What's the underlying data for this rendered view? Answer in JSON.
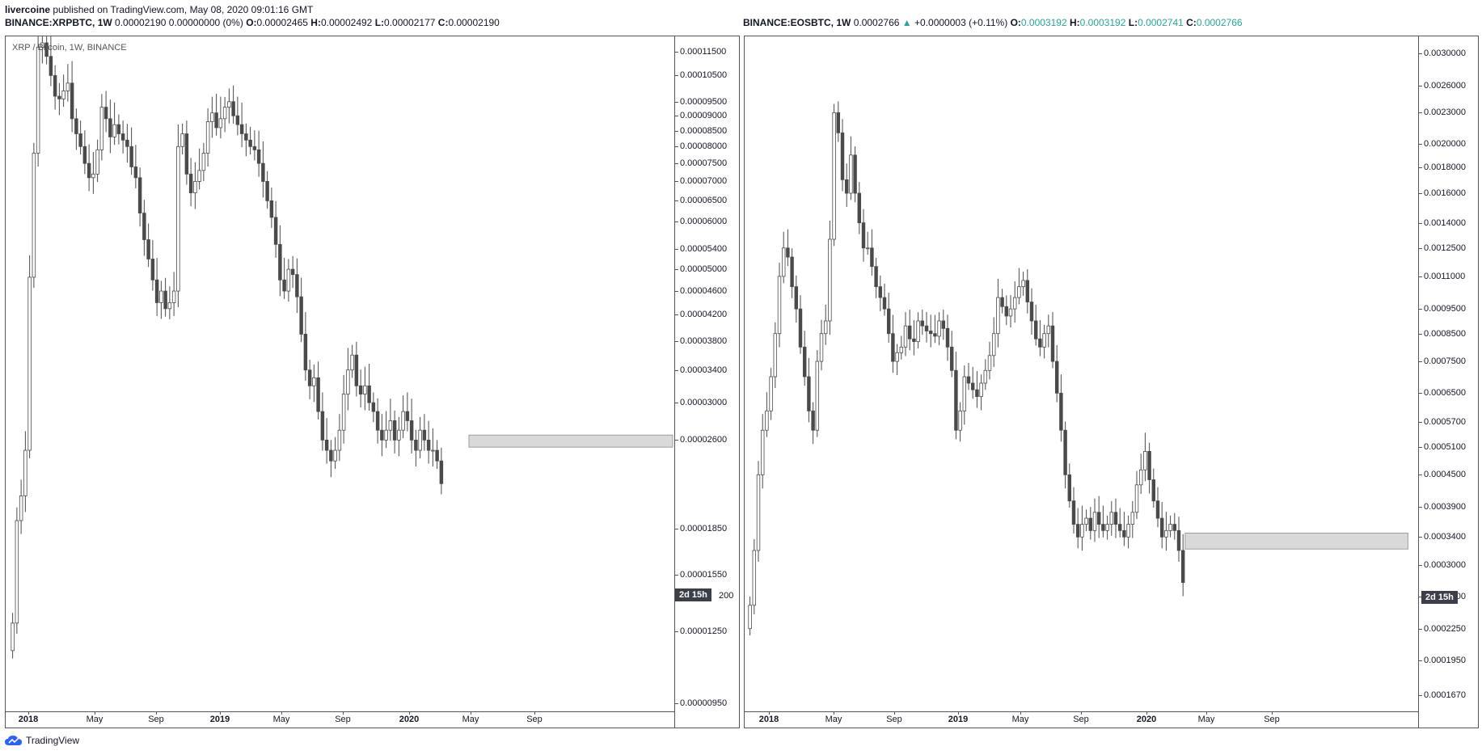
{
  "header": {
    "publisher": "livercoine",
    "published_text": "published on TradingView.com, May 08, 2020 09:01:16 GMT"
  },
  "footer": {
    "brand": "TradingView"
  },
  "colors": {
    "candle_body_down": "#4a4a4a",
    "candle_body_up": "#ffffff",
    "candle_border": "#4a4a4a",
    "zone_fill": "#d9d9d9",
    "zone_border": "#9e9e9e",
    "badge_bg": "#3c3f4a",
    "teal": "#26a69a"
  },
  "panels": [
    {
      "symbol": "BINANCE:XRPBTC",
      "interval": "1W",
      "legend_change": "0.00002190 0.00000000 (0%)",
      "change_up": false,
      "o": "0.00002465",
      "h": "0.00002492",
      "l": "0.00002177",
      "c": "0.00002190",
      "ohlc_teal": false,
      "watermark": "XRP / Bitcoin, 1W, BINANCE",
      "countdown": "2d 15h",
      "countdown_price_label": "200",
      "y_ticks": [
        "0.00011500",
        "0.00010500",
        "0.00009500",
        "0.00009000",
        "0.00008500",
        "0.00008000",
        "0.00007500",
        "0.00007000",
        "0.00006500",
        "0.00006000",
        "0.00005400",
        "0.00005000",
        "0.00004600",
        "0.00004200",
        "0.00003800",
        "0.00003400",
        "0.00003000",
        "0.00002600",
        "0.00001850",
        "0.00001550",
        "0.00001250",
        "0.00000950"
      ],
      "x_ticks": [
        "2018",
        "May",
        "Sep",
        "2019",
        "May",
        "Sep",
        "2020",
        "May",
        "Sep"
      ],
      "chart_data": {
        "type": "candlestick",
        "scale": "log",
        "x_unit": "week",
        "ylim": [
          9.2e-06,
          0.000119
        ],
        "series_close": [
          1.29e-05,
          1.91e-05,
          2.1e-05,
          2.5e-05,
          4.85e-05,
          7.8e-05,
          0.000117,
          0.000119,
          0.000113,
          0.000105,
          9.7e-05,
          9.6e-05,
          9.9e-05,
          0.000102,
          8.9e-05,
          8.4e-05,
          8e-05,
          7.5e-05,
          7.1e-05,
          7.2e-05,
          7.9e-05,
          9.3e-05,
          8.9e-05,
          8.3e-05,
          8.7e-05,
          8.4e-05,
          8.2e-05,
          8e-05,
          7.4e-05,
          7.1e-05,
          6.2e-05,
          5.6e-05,
          5.2e-05,
          4.8e-05,
          4.4e-05,
          4.6e-05,
          4.3e-05,
          4.4e-05,
          4.6e-05,
          8e-05,
          8.4e-05,
          7.2e-05,
          6.7e-05,
          7e-05,
          7.3e-05,
          7.8e-05,
          8.8e-05,
          9.1e-05,
          8.6e-05,
          8.9e-05,
          9.3e-05,
          9.5e-05,
          9e-05,
          8.7e-05,
          8.4e-05,
          8.2e-05,
          8e-05,
          7.9e-05,
          7.5e-05,
          7e-05,
          6.5e-05,
          6.1e-05,
          5.5e-05,
          4.8e-05,
          4.6e-05,
          5e-05,
          4.9e-05,
          4.5e-05,
          3.9e-05,
          3.4e-05,
          3.2e-05,
          3.3e-05,
          2.9e-05,
          2.6e-05,
          2.5e-05,
          2.4e-05,
          2.5e-05,
          2.7e-05,
          3.1e-05,
          3.4e-05,
          3.6e-05,
          3.2e-05,
          3.1e-05,
          3.2e-05,
          3e-05,
          2.9e-05,
          2.7e-05,
          2.6e-05,
          2.7e-05,
          2.8e-05,
          2.6e-05,
          2.7e-05,
          2.9e-05,
          2.8e-05,
          2.6e-05,
          2.5e-05,
          2.7e-05,
          2.6e-05,
          2.5e-05,
          2.5e-05,
          2.4e-05,
          2.2e-05
        ],
        "support_zone": {
          "y_low": 2.53e-05,
          "y_high": 2.65e-05,
          "x_start_week": 108,
          "x_end_week": 156
        }
      }
    },
    {
      "symbol": "BINANCE:EOSBTC",
      "interval": "1W",
      "legend_change": "0.0002766",
      "change_arrow": "▲",
      "change_delta": "+0.0000003 (+0.11%)",
      "change_up": true,
      "o": "0.0003192",
      "h": "0.0003192",
      "l": "0.0002741",
      "c": "0.0002766",
      "ohlc_teal": true,
      "watermark": "",
      "countdown": "2d 15h",
      "countdown_price_label": "",
      "y_ticks": [
        "0.0030000",
        "0.0026000",
        "0.0023000",
        "0.0020000",
        "0.0018000",
        "0.0016000",
        "0.0014000",
        "0.0012500",
        "0.0011000",
        "0.0009500",
        "0.0008500",
        "0.0007500",
        "0.0006500",
        "0.0005700",
        "0.0005100",
        "0.0004500",
        "0.0003900",
        "0.0003400",
        "0.0003000",
        "0.0002600",
        "0.0002250",
        "0.0001950",
        "0.0001670"
      ],
      "x_ticks": [
        "2018",
        "May",
        "Sep",
        "2019",
        "May",
        "Sep",
        "2020",
        "May",
        "Sep"
      ],
      "chart_data": {
        "type": "candlestick",
        "scale": "log",
        "x_unit": "week",
        "ylim": [
          0.000155,
          0.00315
        ],
        "series_close": [
          0.00025,
          0.00032,
          0.00045,
          0.00055,
          0.0006,
          0.0007,
          0.00085,
          0.0011,
          0.00125,
          0.0012,
          0.00105,
          0.00095,
          0.0008,
          0.0007,
          0.0006,
          0.00055,
          0.00075,
          0.00085,
          0.0009,
          0.0013,
          0.0023,
          0.0021,
          0.0017,
          0.0016,
          0.0019,
          0.0016,
          0.0014,
          0.00125,
          0.00125,
          0.00115,
          0.00105,
          0.001,
          0.00095,
          0.00085,
          0.00075,
          0.00078,
          0.0008,
          0.00088,
          0.00083,
          0.00082,
          0.0009,
          0.00088,
          0.00086,
          0.00085,
          0.00084,
          0.0009,
          0.00087,
          0.0008,
          0.00072,
          0.00055,
          0.0006,
          0.0007,
          0.00068,
          0.00066,
          0.00064,
          0.00068,
          0.00072,
          0.00077,
          0.00085,
          0.001,
          0.00096,
          0.00092,
          0.00095,
          0.001,
          0.00105,
          0.00108,
          0.00098,
          0.0009,
          0.00083,
          0.0008,
          0.00085,
          0.00088,
          0.00075,
          0.00065,
          0.00055,
          0.00045,
          0.0004,
          0.00036,
          0.00034,
          0.00036,
          0.00037,
          0.00035,
          0.00038,
          0.00036,
          0.00035,
          0.00036,
          0.00038,
          0.00036,
          0.00035,
          0.00034,
          0.00036,
          0.00038,
          0.00043,
          0.00046,
          0.0005,
          0.00044,
          0.0004,
          0.00037,
          0.00034,
          0.00035,
          0.00036,
          0.00035,
          0.00032,
          0.000277
        ],
        "support_zone": {
          "y_low": 0.000322,
          "y_high": 0.000346,
          "x_start_week": 104,
          "x_end_week": 157
        }
      }
    }
  ]
}
